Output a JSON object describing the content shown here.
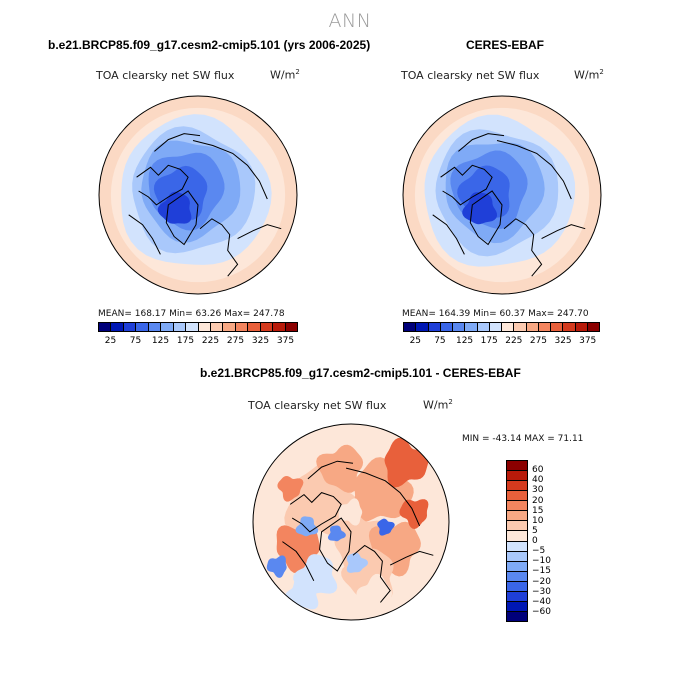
{
  "title": "ANN",
  "panels": [
    {
      "title": "b.e21.BRCP85.f09_g17.cesm2-cmip5.101 (yrs 2006-2025)",
      "var_label": "TOA clearsky net SW flux",
      "units": "W/m",
      "units_exp": "2",
      "stats": "MEAN= 168.17   Min=   63.26   Max= 247.78",
      "colorbar": {
        "colors": [
          "#00007a",
          "#0017b4",
          "#1f3fd8",
          "#3a66e8",
          "#5a88f0",
          "#7faaf6",
          "#a9c8fb",
          "#d2e3fd",
          "#fde7d9",
          "#fbcab0",
          "#f7a884",
          "#f3855f",
          "#e8603b",
          "#d43a1e",
          "#b81a0a",
          "#8b0000"
        ],
        "ticks": [
          "25",
          "75",
          "125",
          "175",
          "225",
          "275",
          "325",
          "375"
        ]
      }
    },
    {
      "title": "CERES-EBAF",
      "var_label": "TOA clearsky net SW flux",
      "units": "W/m",
      "units_exp": "2",
      "stats": "MEAN= 164.39   Min=   60.37   Max= 247.70",
      "colorbar": {
        "colors": [
          "#00007a",
          "#0017b4",
          "#1f3fd8",
          "#3a66e8",
          "#5a88f0",
          "#7faaf6",
          "#a9c8fb",
          "#d2e3fd",
          "#fde7d9",
          "#fbcab0",
          "#f7a884",
          "#f3855f",
          "#e8603b",
          "#d43a1e",
          "#b81a0a",
          "#8b0000"
        ],
        "ticks": [
          "25",
          "75",
          "125",
          "175",
          "225",
          "275",
          "325",
          "375"
        ]
      }
    },
    {
      "title": "b.e21.BRCP85.f09_g17.cesm2-cmip5.101 - CERES-EBAF",
      "var_label": "TOA clearsky net SW flux",
      "units": "W/m",
      "units_exp": "2",
      "stats": "MIN = -43.14  MAX =   71.11",
      "colorbar": {
        "colors": [
          "#8b0000",
          "#b81a0a",
          "#d43a1e",
          "#e8603b",
          "#f3855f",
          "#f7a884",
          "#fbcab0",
          "#fde7d9",
          "#d2e3fd",
          "#a9c8fb",
          "#7faaf6",
          "#5a88f0",
          "#3a66e8",
          "#1f3fd8",
          "#0017b4",
          "#00007a"
        ],
        "ticks": [
          "60",
          "40",
          "30",
          "20",
          "15",
          "10",
          "5",
          "0",
          "−5",
          "−10",
          "−15",
          "−20",
          "−30",
          "−40",
          "−60"
        ]
      }
    }
  ]
}
